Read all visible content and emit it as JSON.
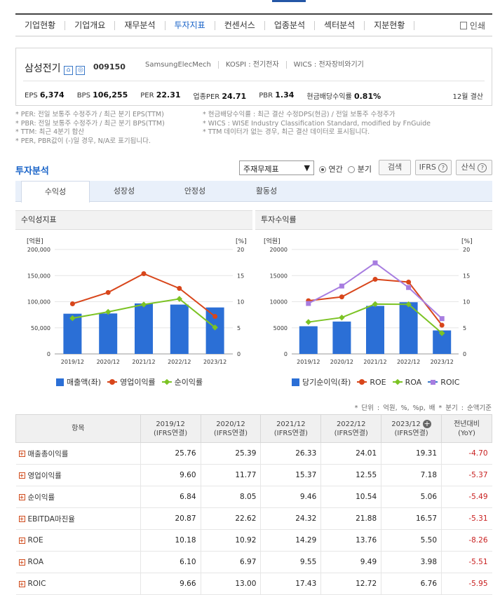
{
  "nav": {
    "tabs": [
      "기업현황",
      "기업개요",
      "재무분석",
      "투자지표",
      "컨센서스",
      "업종분석",
      "섹터분석",
      "지분현황"
    ],
    "active": 3,
    "print": "인쇄"
  },
  "company": {
    "name": "삼성전기",
    "code": "009150",
    "en_name": "SamsungElecMech",
    "market": "KOSPI : 전기전자",
    "wics": "WICS : 전자장비와기기",
    "ratios": [
      {
        "label": "EPS",
        "value": "6,374"
      },
      {
        "label": "BPS",
        "value": "106,255"
      },
      {
        "label": "PER",
        "value": "22.31"
      },
      {
        "label": "업종PER",
        "value": "24.71"
      },
      {
        "label": "PBR",
        "value": "1.34"
      },
      {
        "label": "현금배당수익률",
        "value": "0.81%"
      }
    ],
    "settlement": "12월 결산"
  },
  "notes_left": [
    "* PER: 전일 보통주 수정주가 / 최근 분기 EPS(TTM)",
    "* PBR: 전일 보통주 수정주가 / 최근 분기 BPS(TTM)",
    "* TTM: 최근 4분기 합산",
    "* PER, PBR값이 (-)일 경우, N/A로 표기됩니다."
  ],
  "notes_right": [
    "* 현금배당수익률 : 최근 결산 수정DPS(현금) / 전일 보통주 수정주가",
    "* WICS : WISE Industry Classification Standard, modified by FnGuide",
    "* TTM 데이터가 없는 경우, 최근 결산 데이터로 표시됩니다."
  ],
  "invest": {
    "title": "투자분석",
    "select_value": "주재무제표",
    "radio_annual": "연간",
    "radio_quarter": "분기",
    "search_btn": "검색",
    "ifrs_btn": "IFRS",
    "formula_btn": "산식",
    "subtabs": [
      "수익성",
      "성장성",
      "안정성",
      "활동성"
    ],
    "active_subtab": 0
  },
  "chart_data": [
    {
      "type": "bar",
      "title": "수익성지표",
      "categories": [
        "2019/12",
        "2020/12",
        "2021/12",
        "2022/12",
        "2023/12"
      ],
      "y_left_unit": "[억원]",
      "y_right_unit": "[%]",
      "y_left_ticks": [
        "0",
        "50,000",
        "100,000",
        "150,000",
        "200,000"
      ],
      "y_right_ticks": [
        "0",
        "5",
        "10",
        "15",
        "20"
      ],
      "ylim_left": [
        0,
        200000
      ],
      "ylim_right": [
        0,
        20
      ],
      "series": [
        {
          "name": "매출액(좌)",
          "kind": "bar",
          "axis": "left",
          "color": "#2b6fd6",
          "values": [
            77000,
            77500,
            96700,
            94500,
            89000
          ]
        },
        {
          "name": "영업이익률",
          "kind": "line",
          "axis": "right",
          "marker": "circle",
          "color": "#d8461b",
          "values": [
            9.6,
            11.77,
            15.37,
            12.55,
            7.18
          ]
        },
        {
          "name": "순이익률",
          "kind": "line",
          "axis": "right",
          "marker": "diamond",
          "color": "#7cc324",
          "values": [
            6.84,
            8.05,
            9.46,
            10.54,
            5.06
          ]
        }
      ]
    },
    {
      "type": "bar",
      "title": "투자수익률",
      "categories": [
        "2019/12",
        "2020/12",
        "2021/12",
        "2022/12",
        "2023/12"
      ],
      "y_left_unit": "[억원]",
      "y_right_unit": "[%]",
      "y_left_ticks": [
        "0",
        "5000",
        "10000",
        "15000",
        "20000"
      ],
      "y_right_ticks": [
        "0",
        "5",
        "10",
        "15",
        "20"
      ],
      "ylim_left": [
        0,
        20000
      ],
      "ylim_right": [
        0,
        20
      ],
      "series": [
        {
          "name": "당기순이익(좌)",
          "kind": "bar",
          "axis": "left",
          "color": "#2b6fd6",
          "values": [
            5300,
            6200,
            9200,
            9900,
            4500
          ]
        },
        {
          "name": "ROE",
          "kind": "line",
          "axis": "right",
          "marker": "circle",
          "color": "#d8461b",
          "values": [
            10.18,
            10.92,
            14.29,
            13.76,
            5.5
          ]
        },
        {
          "name": "ROA",
          "kind": "line",
          "axis": "right",
          "marker": "diamond",
          "color": "#7cc324",
          "values": [
            6.1,
            6.97,
            9.55,
            9.49,
            3.98
          ]
        },
        {
          "name": "ROIC",
          "kind": "line",
          "axis": "right",
          "marker": "square",
          "color": "#a77de0",
          "values": [
            9.66,
            13.0,
            17.43,
            12.72,
            6.76
          ]
        }
      ]
    }
  ],
  "table": {
    "unit_note": "* 단위 : 억원, %, %p, 배     * 분기 : 순액기준",
    "header_item": "항목",
    "columns": [
      {
        "period": "2019/12",
        "basis": "(IFRS연결)"
      },
      {
        "period": "2020/12",
        "basis": "(IFRS연결)"
      },
      {
        "period": "2021/12",
        "basis": "(IFRS연결)"
      },
      {
        "period": "2022/12",
        "basis": "(IFRS연결)"
      },
      {
        "period": "2023/12",
        "basis": "(IFRS연결)"
      }
    ],
    "yoy_header": "전년대비",
    "yoy_sub": "(YoY)",
    "rows": [
      {
        "label": "매출총이익률",
        "values": [
          "25.76",
          "25.39",
          "26.33",
          "24.01",
          "19.31"
        ],
        "yoy": "-4.70"
      },
      {
        "label": "영업이익률",
        "values": [
          "9.60",
          "11.77",
          "15.37",
          "12.55",
          "7.18"
        ],
        "yoy": "-5.37"
      },
      {
        "label": "순이익률",
        "values": [
          "6.84",
          "8.05",
          "9.46",
          "10.54",
          "5.06"
        ],
        "yoy": "-5.49"
      },
      {
        "label": "EBITDA마진율",
        "values": [
          "20.87",
          "22.62",
          "24.32",
          "21.88",
          "16.57"
        ],
        "yoy": "-5.31"
      },
      {
        "label": "ROE",
        "values": [
          "10.18",
          "10.92",
          "14.29",
          "13.76",
          "5.50"
        ],
        "yoy": "-8.26"
      },
      {
        "label": "ROA",
        "values": [
          "6.10",
          "6.97",
          "9.55",
          "9.49",
          "3.98"
        ],
        "yoy": "-5.51"
      },
      {
        "label": "ROIC",
        "values": [
          "9.66",
          "13.00",
          "17.43",
          "12.72",
          "6.76"
        ],
        "yoy": "-5.95"
      }
    ]
  }
}
